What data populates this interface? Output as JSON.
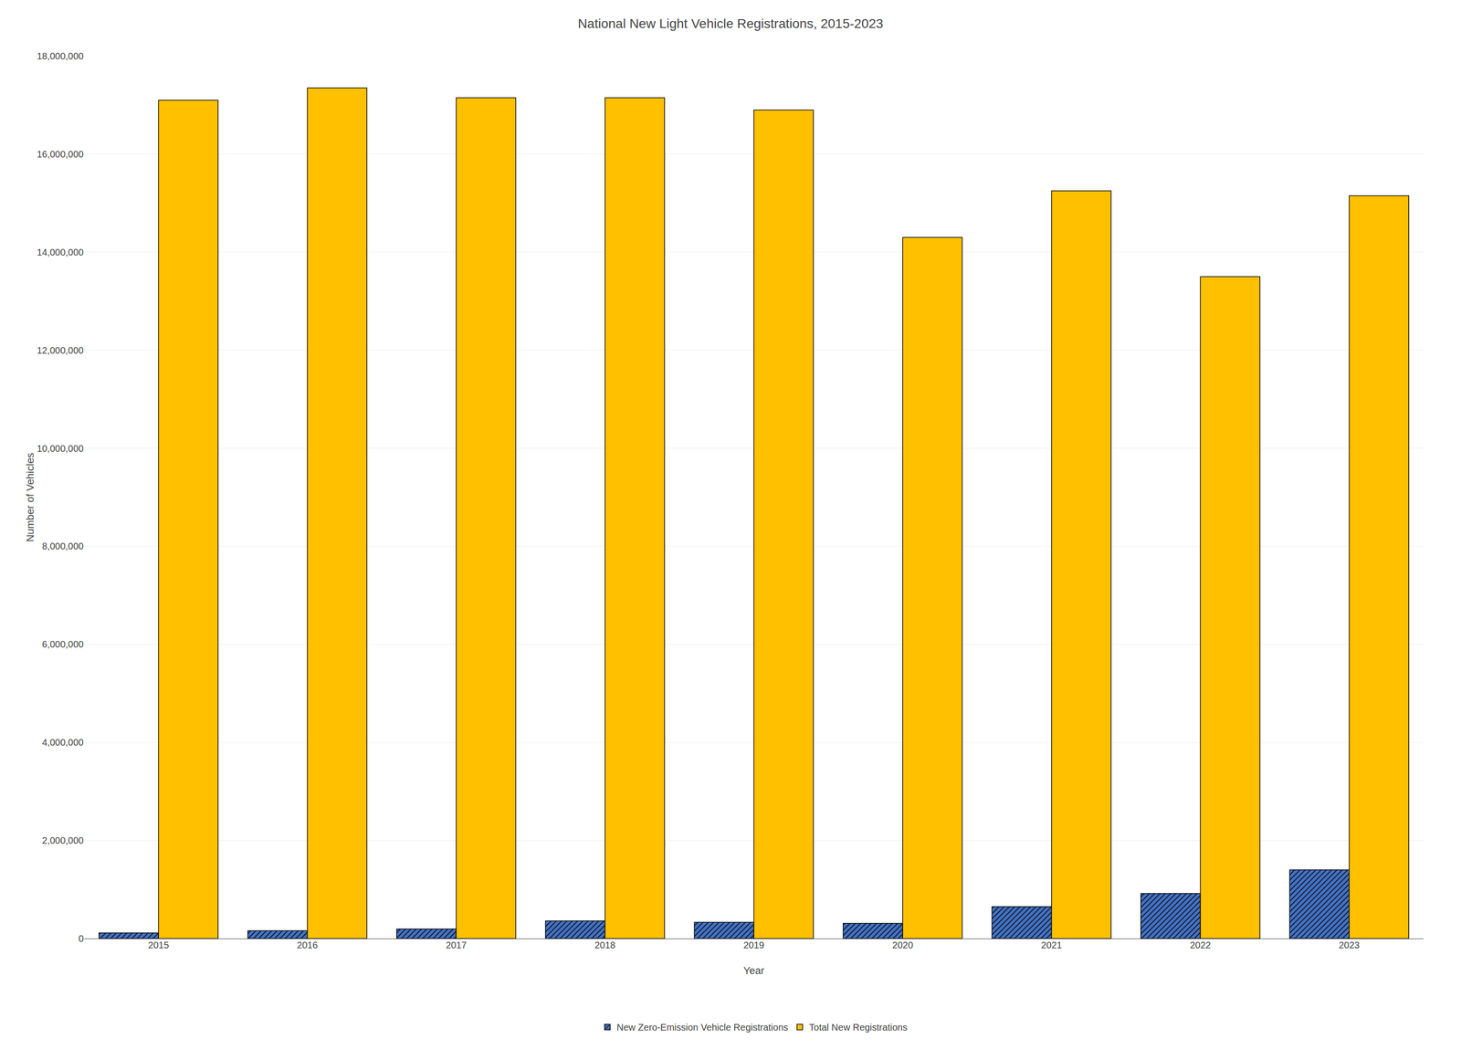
{
  "chart_data": {
    "type": "bar",
    "title": "National New Light Vehicle Registrations, 2015-2023",
    "x_label": "Year",
    "y_label": "Number of Vehicles",
    "categories": [
      "2015",
      "2016",
      "2017",
      "2018",
      "2019",
      "2020",
      "2021",
      "2022",
      "2023"
    ],
    "series": [
      {
        "name": "New Zero-Emission Vehicle Registrations",
        "color": "#4472C4",
        "values": [
          115000,
          160000,
          195000,
          360000,
          330000,
          310000,
          650000,
          920000,
          1400000
        ]
      },
      {
        "name": "Total New Registrations",
        "color": "#FFC000",
        "values": [
          17100000,
          17350000,
          17150000,
          17150000,
          16900000,
          14300000,
          15250000,
          13500000,
          15150000
        ]
      }
    ],
    "ylim": [
      0,
      18000000
    ],
    "yticks": [
      0,
      {
        "value": 2000000,
        "label": "2,000,000"
      },
      {
        "value": 4000000,
        "label": "4,000,000"
      },
      {
        "value": 6000000,
        "label": "6,000,000"
      },
      {
        "value": 8000000,
        "label": "8,000,000"
      },
      {
        "value": 10000000,
        "label": "10,000,000"
      },
      {
        "value": 12000000,
        "label": "12,000,000"
      },
      {
        "value": 14000000,
        "label": "14,000,000"
      },
      {
        "value": 16000000,
        "label": "16,000,000"
      },
      {
        "value": 18000000,
        "label": "18,000,000"
      }
    ],
    "grid": true,
    "legend": "bottom"
  }
}
